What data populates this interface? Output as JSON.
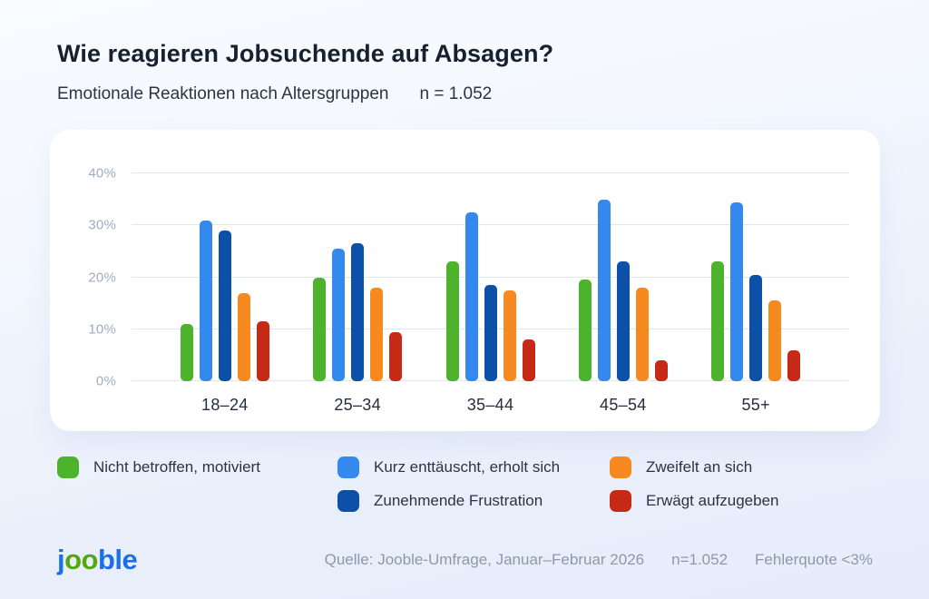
{
  "header": {
    "title": "Wie reagieren Jobsuchende auf Absagen?",
    "subtitle": "Emotionale Reaktionen nach Altersgruppen",
    "sample_size": "n = 1.052"
  },
  "chart_data": {
    "type": "bar",
    "title": "Wie reagieren Jobsuchende auf Absagen?",
    "subtitle": "Emotionale Reaktionen nach Altersgruppen",
    "categories": [
      "18–24",
      "25–34",
      "35–44",
      "45–54",
      "55+"
    ],
    "series": [
      {
        "name": "Nicht betroffen, motiviert",
        "color": "#4db22c",
        "values": [
          11,
          20,
          23,
          19.5,
          23
        ]
      },
      {
        "name": "Kurz enttäuscht, erholt sich",
        "color": "#3389ee",
        "values": [
          31,
          25.5,
          32.5,
          35,
          34.5
        ]
      },
      {
        "name": "Zunehmende Frustration",
        "color": "#0d50a7",
        "values": [
          29,
          26.5,
          18.5,
          23,
          20.5
        ]
      },
      {
        "name": "Zweifelt an sich",
        "color": "#f68a1f",
        "values": [
          17,
          18,
          17.5,
          18,
          15.5
        ]
      },
      {
        "name": "Erwägt aufzugeben",
        "color": "#c62a17",
        "values": [
          11.5,
          9.5,
          8,
          4,
          6
        ]
      }
    ],
    "ylim": [
      0,
      40
    ],
    "yticks": [
      "0%",
      "10%",
      "20%",
      "30%",
      "40%"
    ],
    "xlabel": "",
    "ylabel": "",
    "grid": "horizontal",
    "legend_position": "bottom",
    "group_centers_pct": [
      13,
      31.5,
      50,
      68.5,
      87
    ]
  },
  "footer": {
    "logo": {
      "part1": "j",
      "part2": "oo",
      "part3": "ble",
      "blue": "#1b6fe8",
      "green": "#56a80e"
    },
    "source": "Quelle: Jooble-Umfrage, Januar–Februar 2026",
    "sample": "n=1.052",
    "error_rate": "Fehlerquote <3%"
  }
}
